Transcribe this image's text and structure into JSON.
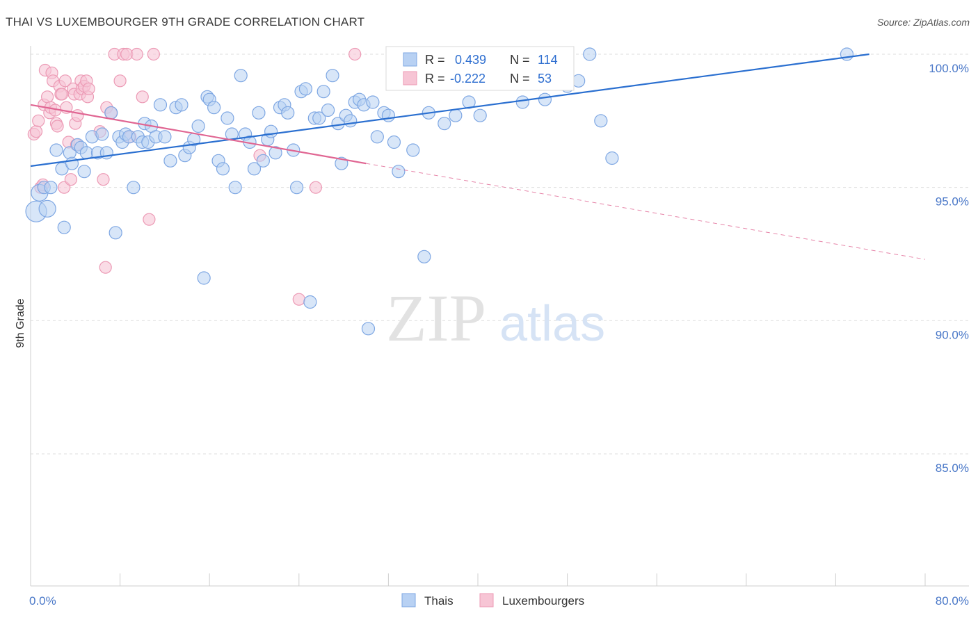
{
  "header": {
    "title": "THAI VS LUXEMBOURGER 9TH GRADE CORRELATION CHART",
    "source": "Source: ZipAtlas.com"
  },
  "colors": {
    "thais_fill": "#b8d1f3",
    "thais_stroke": "#7ea7e3",
    "thais_line": "#2a6fd0",
    "lux_fill": "#f7c5d5",
    "lux_stroke": "#ec9ab5",
    "lux_line": "#e06592",
    "grid": "#dedede",
    "tick_label": "#4a78c8"
  },
  "chart_data": {
    "type": "scatter",
    "ylabel": "9th Grade",
    "xlim": [
      0.0,
      80.0
    ],
    "ylim": [
      80.0,
      100.7
    ],
    "y_ticks": [
      {
        "value": 100.0,
        "label": "100.0%"
      },
      {
        "value": 95.0,
        "label": "95.0%"
      },
      {
        "value": 90.0,
        "label": "90.0%"
      },
      {
        "value": 85.0,
        "label": "85.0%"
      }
    ],
    "x_tick_labels": {
      "min": "0.0%",
      "max": "80.0%"
    },
    "stats": [
      {
        "r_label": "R =",
        "r_value": "0.439",
        "n_label": "N =",
        "n_value": "114"
      },
      {
        "r_label": "R =",
        "r_value": "-0.222",
        "n_label": "N =",
        "n_value": "53"
      }
    ],
    "legend": [
      "Thais",
      "Luxembourgers"
    ],
    "series": [
      {
        "name": "Thais",
        "trend": {
          "x0": 0.0,
          "y0": 95.8,
          "x1": 75.0,
          "y1": 100.0
        },
        "points": [
          [
            0.5,
            94.1
          ],
          [
            0.8,
            94.8
          ],
          [
            1.2,
            95.0
          ],
          [
            1.5,
            94.2
          ],
          [
            1.8,
            95.0
          ],
          [
            2.3,
            96.4
          ],
          [
            2.8,
            95.7
          ],
          [
            3.0,
            93.5
          ],
          [
            3.5,
            96.3
          ],
          [
            3.7,
            95.9
          ],
          [
            4.2,
            96.6
          ],
          [
            4.5,
            96.5
          ],
          [
            4.8,
            95.6
          ],
          [
            5.0,
            96.3
          ],
          [
            5.5,
            96.9
          ],
          [
            6.0,
            96.3
          ],
          [
            6.4,
            97.0
          ],
          [
            6.8,
            96.3
          ],
          [
            7.2,
            97.8
          ],
          [
            7.6,
            93.3
          ],
          [
            7.9,
            96.9
          ],
          [
            8.2,
            96.7
          ],
          [
            8.5,
            97.0
          ],
          [
            8.8,
            96.9
          ],
          [
            9.2,
            95.0
          ],
          [
            9.6,
            96.9
          ],
          [
            10.0,
            96.7
          ],
          [
            10.2,
            97.4
          ],
          [
            10.5,
            96.7
          ],
          [
            10.8,
            97.3
          ],
          [
            11.2,
            96.9
          ],
          [
            11.6,
            98.1
          ],
          [
            12.0,
            96.9
          ],
          [
            12.5,
            96.0
          ],
          [
            13.0,
            98.0
          ],
          [
            13.5,
            98.1
          ],
          [
            13.8,
            96.2
          ],
          [
            14.2,
            96.5
          ],
          [
            14.6,
            96.8
          ],
          [
            15.0,
            97.3
          ],
          [
            15.5,
            91.6
          ],
          [
            15.8,
            98.4
          ],
          [
            16.0,
            98.3
          ],
          [
            16.4,
            98.0
          ],
          [
            16.8,
            96.0
          ],
          [
            17.2,
            95.7
          ],
          [
            17.6,
            97.6
          ],
          [
            18.0,
            97.0
          ],
          [
            18.3,
            95.0
          ],
          [
            18.8,
            99.2
          ],
          [
            19.2,
            97.0
          ],
          [
            19.6,
            96.7
          ],
          [
            20.0,
            95.7
          ],
          [
            20.4,
            97.8
          ],
          [
            20.8,
            96.0
          ],
          [
            21.2,
            96.8
          ],
          [
            21.5,
            97.1
          ],
          [
            21.9,
            96.3
          ],
          [
            22.3,
            98.0
          ],
          [
            22.7,
            98.1
          ],
          [
            23.0,
            97.8
          ],
          [
            23.5,
            96.4
          ],
          [
            23.8,
            95.0
          ],
          [
            24.2,
            98.6
          ],
          [
            24.6,
            98.7
          ],
          [
            25.0,
            90.7
          ],
          [
            25.4,
            97.6
          ],
          [
            25.8,
            97.6
          ],
          [
            26.2,
            98.6
          ],
          [
            26.6,
            97.9
          ],
          [
            27.0,
            99.2
          ],
          [
            27.5,
            97.4
          ],
          [
            27.8,
            95.9
          ],
          [
            28.2,
            97.7
          ],
          [
            28.6,
            97.5
          ],
          [
            29.0,
            98.2
          ],
          [
            29.4,
            98.3
          ],
          [
            29.8,
            98.1
          ],
          [
            30.2,
            89.7
          ],
          [
            30.6,
            98.2
          ],
          [
            31.0,
            96.9
          ],
          [
            31.6,
            97.8
          ],
          [
            32.0,
            97.7
          ],
          [
            32.5,
            96.7
          ],
          [
            32.9,
            95.6
          ],
          [
            33.4,
            99.0
          ],
          [
            33.8,
            98.9
          ],
          [
            34.2,
            96.4
          ],
          [
            34.6,
            99.4
          ],
          [
            35.2,
            92.4
          ],
          [
            35.6,
            97.8
          ],
          [
            36.0,
            99.5
          ],
          [
            36.5,
            99.3
          ],
          [
            37.0,
            97.4
          ],
          [
            37.5,
            100.0
          ],
          [
            38.0,
            97.7
          ],
          [
            38.6,
            100.0
          ],
          [
            39.2,
            98.2
          ],
          [
            39.8,
            100.0
          ],
          [
            40.2,
            97.7
          ],
          [
            41.0,
            99.5
          ],
          [
            41.8,
            100.0
          ],
          [
            42.5,
            100.0
          ],
          [
            43.2,
            99.7
          ],
          [
            44.0,
            98.2
          ],
          [
            45.0,
            100.0
          ],
          [
            46.0,
            98.3
          ],
          [
            47.0,
            99.0
          ],
          [
            48.0,
            98.8
          ],
          [
            49.0,
            99.0
          ],
          [
            50.0,
            100.0
          ],
          [
            51.0,
            97.5
          ],
          [
            52.0,
            96.1
          ],
          [
            73.0,
            100.0
          ]
        ]
      },
      {
        "name": "Luxembourgers",
        "trend": {
          "x0": 0.0,
          "y0": 98.1,
          "x1": 30.0,
          "y1": 95.9
        },
        "trend_ext": {
          "x0": 30.0,
          "y0": 95.9,
          "x1": 80.0,
          "y1": 92.3
        },
        "points": [
          [
            0.3,
            97.0
          ],
          [
            0.5,
            97.1
          ],
          [
            0.7,
            97.5
          ],
          [
            0.9,
            95.0
          ],
          [
            1.1,
            95.1
          ],
          [
            1.2,
            98.1
          ],
          [
            1.3,
            99.4
          ],
          [
            1.5,
            98.4
          ],
          [
            1.7,
            97.8
          ],
          [
            1.8,
            98.0
          ],
          [
            1.9,
            99.3
          ],
          [
            2.0,
            99.0
          ],
          [
            2.2,
            97.9
          ],
          [
            2.3,
            97.4
          ],
          [
            2.4,
            97.3
          ],
          [
            2.6,
            98.8
          ],
          [
            2.7,
            98.5
          ],
          [
            2.8,
            98.5
          ],
          [
            3.0,
            95.0
          ],
          [
            3.1,
            99.0
          ],
          [
            3.2,
            98.0
          ],
          [
            3.4,
            96.7
          ],
          [
            3.6,
            95.3
          ],
          [
            3.8,
            98.7
          ],
          [
            3.9,
            98.5
          ],
          [
            4.0,
            97.4
          ],
          [
            4.1,
            96.6
          ],
          [
            4.2,
            97.7
          ],
          [
            4.4,
            98.5
          ],
          [
            4.5,
            99.0
          ],
          [
            4.6,
            98.7
          ],
          [
            4.8,
            98.8
          ],
          [
            5.0,
            99.0
          ],
          [
            5.1,
            98.4
          ],
          [
            5.2,
            98.7
          ],
          [
            6.2,
            97.1
          ],
          [
            6.5,
            95.3
          ],
          [
            6.7,
            92.0
          ],
          [
            6.8,
            98.0
          ],
          [
            7.2,
            97.8
          ],
          [
            7.5,
            100.0
          ],
          [
            8.0,
            99.0
          ],
          [
            8.3,
            100.0
          ],
          [
            8.6,
            100.0
          ],
          [
            8.9,
            96.9
          ],
          [
            9.5,
            100.0
          ],
          [
            10.0,
            98.4
          ],
          [
            10.6,
            93.8
          ],
          [
            11.0,
            100.0
          ],
          [
            20.5,
            96.2
          ],
          [
            24.0,
            90.8
          ],
          [
            25.5,
            95.0
          ],
          [
            29.0,
            100.0
          ]
        ]
      }
    ]
  }
}
